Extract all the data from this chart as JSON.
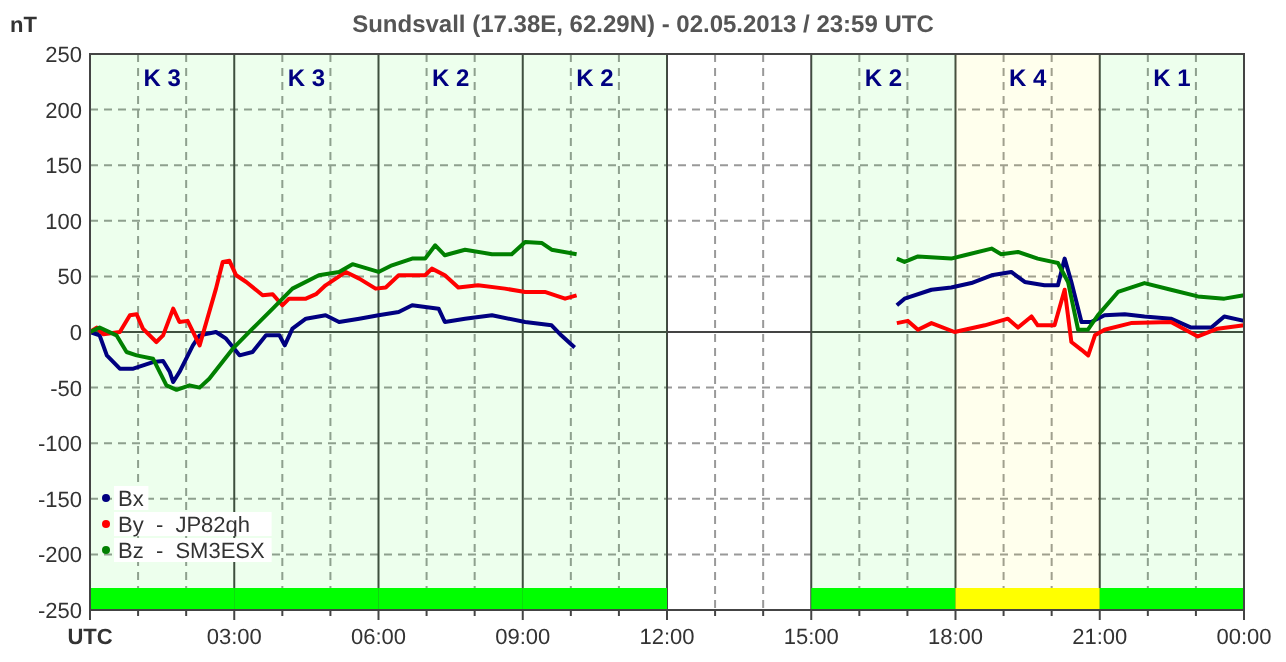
{
  "chart_data": {
    "type": "line",
    "title": "Sundsvall (17.38E, 62.29N) - 02.05.2013 / 23:59 UTC",
    "ylabel": "nT",
    "xlim": [
      0,
      24
    ],
    "ylim": [
      -250,
      250
    ],
    "xticks": [
      {
        "value": 0,
        "label": "UTC"
      },
      {
        "value": 1,
        "label": null
      },
      {
        "value": 2,
        "label": null
      },
      {
        "value": 3,
        "label": "03:00"
      },
      {
        "value": 4,
        "label": null
      },
      {
        "value": 5,
        "label": null
      },
      {
        "value": 6,
        "label": "06:00"
      },
      {
        "value": 7,
        "label": null
      },
      {
        "value": 8,
        "label": null
      },
      {
        "value": 9,
        "label": "09:00"
      },
      {
        "value": 10,
        "label": null
      },
      {
        "value": 11,
        "label": null
      },
      {
        "value": 12,
        "label": "12:00"
      },
      {
        "value": 13,
        "label": null
      },
      {
        "value": 14,
        "label": null
      },
      {
        "value": 15,
        "label": "15:00"
      },
      {
        "value": 16,
        "label": null
      },
      {
        "value": 17,
        "label": null
      },
      {
        "value": 18,
        "label": "18:00"
      },
      {
        "value": 19,
        "label": null
      },
      {
        "value": 20,
        "label": null
      },
      {
        "value": 21,
        "label": "21:00"
      },
      {
        "value": 22,
        "label": null
      },
      {
        "value": 23,
        "label": null
      },
      {
        "value": 24,
        "label": "00:00"
      }
    ],
    "yticks": [
      -250,
      -200,
      -150,
      -100,
      -50,
      0,
      50,
      100,
      150,
      200,
      250
    ],
    "grid": true,
    "legend": "bottom left",
    "marker": "none",
    "line_style": "solid",
    "bands": [
      {
        "axis": "x",
        "from": 0,
        "to": 3,
        "label": "K 3",
        "color": "#00ff00"
      },
      {
        "axis": "x",
        "from": 3,
        "to": 6,
        "label": "K 3",
        "color": "#00ff00"
      },
      {
        "axis": "x",
        "from": 6,
        "to": 9,
        "label": "K 2",
        "color": "#00ff00"
      },
      {
        "axis": "x",
        "from": 9,
        "to": 12,
        "label": "K 2",
        "color": "#00ff00"
      },
      {
        "axis": "x",
        "from": 15,
        "to": 18,
        "label": "K 2",
        "color": "#00ff00"
      },
      {
        "axis": "x",
        "from": 18,
        "to": 21,
        "label": "K 4",
        "color": "#ffff00"
      },
      {
        "axis": "x",
        "from": 21,
        "to": 24,
        "label": "K 1",
        "color": "#00ff00"
      }
    ],
    "series": [
      {
        "name": "Bx",
        "color": "#000080",
        "x": [
          0,
          0.2,
          0.35,
          0.62,
          0.9,
          1.31,
          1.52,
          1.66,
          1.73,
          1.86,
          2.14,
          2.28,
          2.62,
          2.83,
          3.11,
          3.38,
          3.66,
          3.94,
          4.05,
          4.21,
          4.49,
          4.9,
          5.18,
          5.6,
          6.0,
          6.42,
          6.7,
          7.25,
          7.38,
          7.8,
          8.36,
          9.05,
          9.6,
          9.8,
          10.08,
          13,
          16.78,
          16.94,
          17.5,
          17.91,
          18.33,
          18.75,
          19.16,
          19.44,
          19.85,
          20.13,
          20.27,
          20.41,
          20.62,
          20.82,
          21.1,
          21.52,
          21.93,
          22.48,
          22.9,
          23.32,
          23.59,
          24.0
        ],
        "values": [
          0,
          -3,
          -21,
          -33,
          -33,
          -27,
          -26,
          -36,
          -45,
          -36,
          -12,
          -3,
          0,
          -6,
          -21,
          -18,
          -3,
          -3,
          -12,
          3,
          12,
          15,
          9,
          12,
          15,
          18,
          24,
          21,
          9,
          12,
          15,
          9,
          6,
          -3,
          -14,
          null,
          24,
          30,
          38,
          40,
          44,
          51,
          54,
          45,
          42,
          42,
          66,
          45,
          9,
          9,
          15,
          16,
          14,
          12,
          4,
          4,
          14,
          10
        ]
      },
      {
        "name": "By  -  JP82qh",
        "color": "#ff0000",
        "x": [
          0,
          0.14,
          0.28,
          0.62,
          0.83,
          0.97,
          1.1,
          1.38,
          1.52,
          1.73,
          1.86,
          2.03,
          2.28,
          2.42,
          2.62,
          2.76,
          2.9,
          3.04,
          3.25,
          3.59,
          3.8,
          4.0,
          4.14,
          4.49,
          4.7,
          4.9,
          5.32,
          5.6,
          5.94,
          6.15,
          6.42,
          6.97,
          7.11,
          7.38,
          7.66,
          8.07,
          8.63,
          9.05,
          9.46,
          9.88,
          10.12,
          13,
          16.78,
          17.01,
          17.22,
          17.5,
          17.98,
          18.61,
          19.09,
          19.3,
          19.58,
          19.71,
          20.06,
          20.27,
          20.41,
          20.62,
          20.76,
          20.9,
          21.1,
          21.65,
          22.48,
          23.04,
          23.45,
          24.0
        ],
        "values": [
          0,
          4,
          -2,
          0,
          15,
          16,
          3,
          -9,
          -3,
          21,
          9,
          10,
          -12,
          9,
          39,
          63,
          64,
          51,
          45,
          33,
          34,
          24,
          30,
          30,
          34,
          42,
          54,
          48,
          39,
          40,
          51,
          51,
          57,
          51,
          40,
          42,
          39,
          36,
          36,
          30,
          33,
          null,
          8,
          10,
          2,
          8,
          0,
          6,
          12,
          4,
          14,
          6,
          6,
          38,
          -9,
          -16,
          -21,
          -3,
          2,
          8,
          9,
          -4,
          3,
          6
        ]
      },
      {
        "name": "Bz  -  SM3ESX",
        "color": "#008000",
        "x": [
          0,
          0.2,
          0.55,
          0.76,
          0.97,
          1.31,
          1.59,
          1.8,
          2.07,
          2.28,
          2.48,
          2.97,
          3.38,
          3.8,
          4.21,
          4.76,
          5.18,
          5.46,
          6.0,
          6.28,
          6.7,
          6.97,
          7.18,
          7.38,
          7.8,
          8.36,
          8.77,
          9.05,
          9.4,
          9.6,
          10.12,
          13,
          16.78,
          16.94,
          17.22,
          17.91,
          18.19,
          18.75,
          18.95,
          19.3,
          19.71,
          20.13,
          20.34,
          20.55,
          20.75,
          20.96,
          21.38,
          21.93,
          22.48,
          23.04,
          23.59,
          24.0
        ],
        "values": [
          0,
          4,
          -3,
          -18,
          -21,
          -24,
          -48,
          -52,
          -48,
          -50,
          -42,
          -15,
          3,
          21,
          39,
          51,
          54,
          61,
          54,
          60,
          66,
          66,
          78,
          69,
          74,
          70,
          70,
          81,
          80,
          74,
          70,
          null,
          66,
          63,
          68,
          66,
          69,
          75,
          70,
          72,
          66,
          62,
          45,
          2,
          2,
          15,
          36,
          44,
          38,
          32,
          30,
          33
        ]
      }
    ]
  }
}
